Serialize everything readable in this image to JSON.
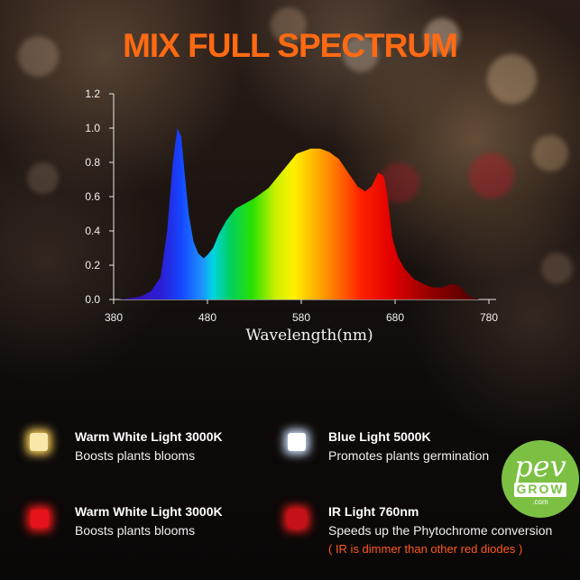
{
  "title": "MIX FULL SPECTRUM",
  "chart_data": {
    "type": "area",
    "title": "",
    "xlabel": "Wavelength(nm)",
    "ylabel": "",
    "xlim": [
      380,
      780
    ],
    "ylim": [
      0,
      1.2
    ],
    "x_ticks": [
      "380",
      "480",
      "580",
      "680",
      "780"
    ],
    "y_ticks": [
      "0.0",
      "0.2",
      "0.4",
      "0.6",
      "0.8",
      "1.0",
      "1.2"
    ],
    "grid": false,
    "series": [
      {
        "x": [
          385,
          400,
          410,
          420,
          430,
          437,
          443,
          448,
          452,
          456,
          460,
          465,
          470,
          476,
          480,
          486,
          492,
          500,
          510,
          520,
          530,
          545,
          560,
          575,
          590,
          600,
          610,
          620,
          630,
          640,
          648,
          655,
          662,
          668,
          672,
          677,
          683,
          690,
          700,
          710,
          720,
          730,
          740,
          748,
          755,
          762,
          770
        ],
        "y": [
          0.0,
          0.01,
          0.02,
          0.05,
          0.13,
          0.4,
          0.8,
          1.0,
          0.95,
          0.72,
          0.5,
          0.34,
          0.27,
          0.24,
          0.26,
          0.3,
          0.38,
          0.46,
          0.53,
          0.56,
          0.59,
          0.65,
          0.75,
          0.85,
          0.88,
          0.88,
          0.86,
          0.82,
          0.74,
          0.66,
          0.63,
          0.66,
          0.74,
          0.72,
          0.6,
          0.36,
          0.25,
          0.18,
          0.12,
          0.09,
          0.07,
          0.07,
          0.09,
          0.08,
          0.04,
          0.01,
          0.0
        ]
      }
    ]
  },
  "legend": [
    {
      "title": "Warm White Light 3000K",
      "desc": "Boosts plants blooms",
      "note": "",
      "color": "#f7e7a9",
      "glow": "#ffd25a"
    },
    {
      "title": "Blue Light  5000K",
      "desc": "Promotes plants germination",
      "note": "",
      "color": "#ffffff",
      "glow": "#cfe3ff"
    },
    {
      "title": "Warm White Light 3000K",
      "desc": "Boosts plants blooms",
      "note": "",
      "color": "#e5131b",
      "glow": "#ff1a1a"
    },
    {
      "title": "IR Light  760nm",
      "desc": "Speeds up the Phytochrome conversion",
      "note": "( IR is dimmer than other red diodes )",
      "color": "#c6101a",
      "glow": "#ff1a1a"
    }
  ],
  "logo": {
    "name": "pev",
    "sub": "GROW",
    "domain": ".com",
    "color": "#7bc043"
  }
}
